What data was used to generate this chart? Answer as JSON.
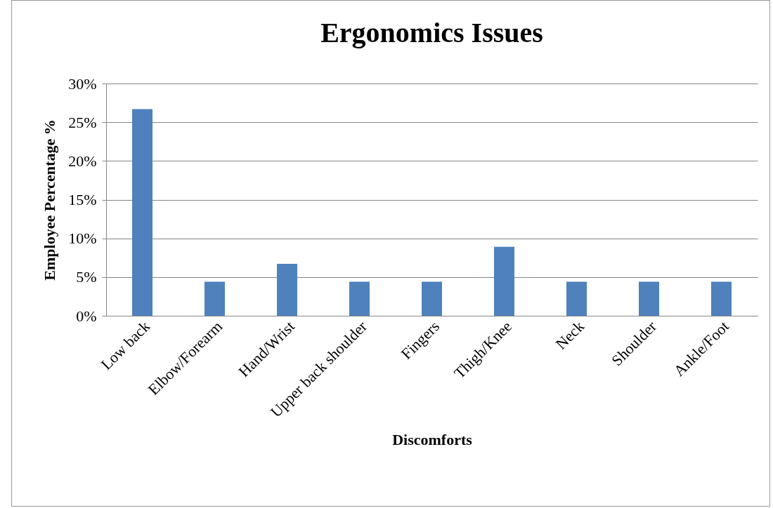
{
  "chart_data": {
    "type": "bar",
    "title": "Ergonomics Issues",
    "xlabel": "Discomforts",
    "ylabel": "Employee Percentage %",
    "categories": [
      "Low back",
      "Elbow/Forearm",
      "Hand/Wrist",
      "Upper back shoulder",
      "Fingers",
      "Thigh/Knee",
      "Neck",
      "Shoulder",
      "Ankle/Foot"
    ],
    "values": [
      26.7,
      4.4,
      6.7,
      4.4,
      4.4,
      8.9,
      4.4,
      4.4,
      4.4
    ],
    "color": "#4f81bd",
    "ylim": [
      0,
      30
    ],
    "yticks": [
      {
        "value": 0,
        "label": "0%"
      },
      {
        "value": 5,
        "label": "5%"
      },
      {
        "value": 10,
        "label": "10%"
      },
      {
        "value": 15,
        "label": "15%"
      },
      {
        "value": 20,
        "label": "20%"
      },
      {
        "value": 25,
        "label": "25%"
      },
      {
        "value": 30,
        "label": "30%"
      }
    ],
    "grid": "y"
  }
}
